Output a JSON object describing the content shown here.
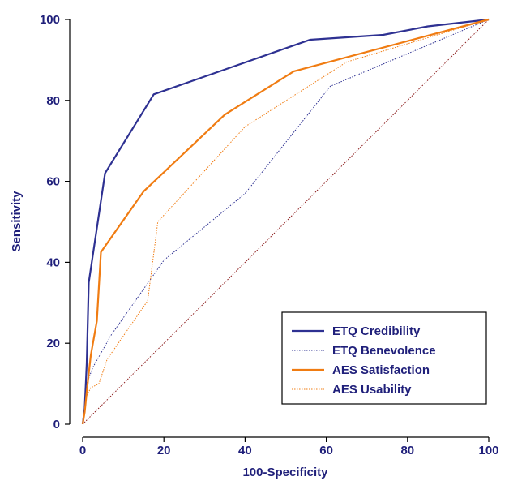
{
  "chart_data": {
    "type": "line",
    "title": "",
    "xlabel": "100-Specificity",
    "ylabel": "Sensitivity",
    "xlim": [
      0,
      100
    ],
    "ylim": [
      0,
      100
    ],
    "xticks": [
      0,
      20,
      40,
      60,
      80,
      100
    ],
    "yticks": [
      0,
      20,
      40,
      60,
      80,
      100
    ],
    "grid": false,
    "legend_position": "bottom-right",
    "diagonal_reference": {
      "points": [
        [
          0,
          0
        ],
        [
          100,
          100
        ]
      ],
      "color": "#8b1a1a",
      "style": "dotted"
    },
    "series": [
      {
        "name": "ETQ Credibility",
        "color": "#2e3192",
        "style": "solid",
        "points": [
          [
            0,
            0
          ],
          [
            0.5,
            4
          ],
          [
            1,
            15
          ],
          [
            1.5,
            35
          ],
          [
            5.5,
            62
          ],
          [
            17.5,
            81.5
          ],
          [
            56,
            95
          ],
          [
            74,
            96.2
          ],
          [
            85,
            98.3
          ],
          [
            100,
            100
          ]
        ]
      },
      {
        "name": "ETQ Benevolence",
        "color": "#2e3192",
        "style": "dotted",
        "points": [
          [
            0,
            0
          ],
          [
            0.5,
            3
          ],
          [
            1,
            10
          ],
          [
            2.5,
            14
          ],
          [
            7,
            22
          ],
          [
            20,
            40.5
          ],
          [
            40,
            57
          ],
          [
            61,
            83.5
          ],
          [
            100,
            100
          ]
        ]
      },
      {
        "name": "AES Satisfaction",
        "color": "#f07c12",
        "style": "solid",
        "points": [
          [
            0,
            0
          ],
          [
            0.5,
            3
          ],
          [
            1,
            8
          ],
          [
            2,
            17
          ],
          [
            3.5,
            25.5
          ],
          [
            4.5,
            42.5
          ],
          [
            15,
            57.5
          ],
          [
            35,
            76.5
          ],
          [
            52,
            87.2
          ],
          [
            100,
            100
          ]
        ]
      },
      {
        "name": "AES Usability",
        "color": "#f07c12",
        "style": "dotted",
        "points": [
          [
            0,
            0
          ],
          [
            1,
            7
          ],
          [
            2,
            9
          ],
          [
            4,
            10
          ],
          [
            6,
            16
          ],
          [
            16,
            30.5
          ],
          [
            18.5,
            50
          ],
          [
            40,
            73.5
          ],
          [
            65,
            89.5
          ],
          [
            100,
            100
          ]
        ]
      }
    ]
  }
}
